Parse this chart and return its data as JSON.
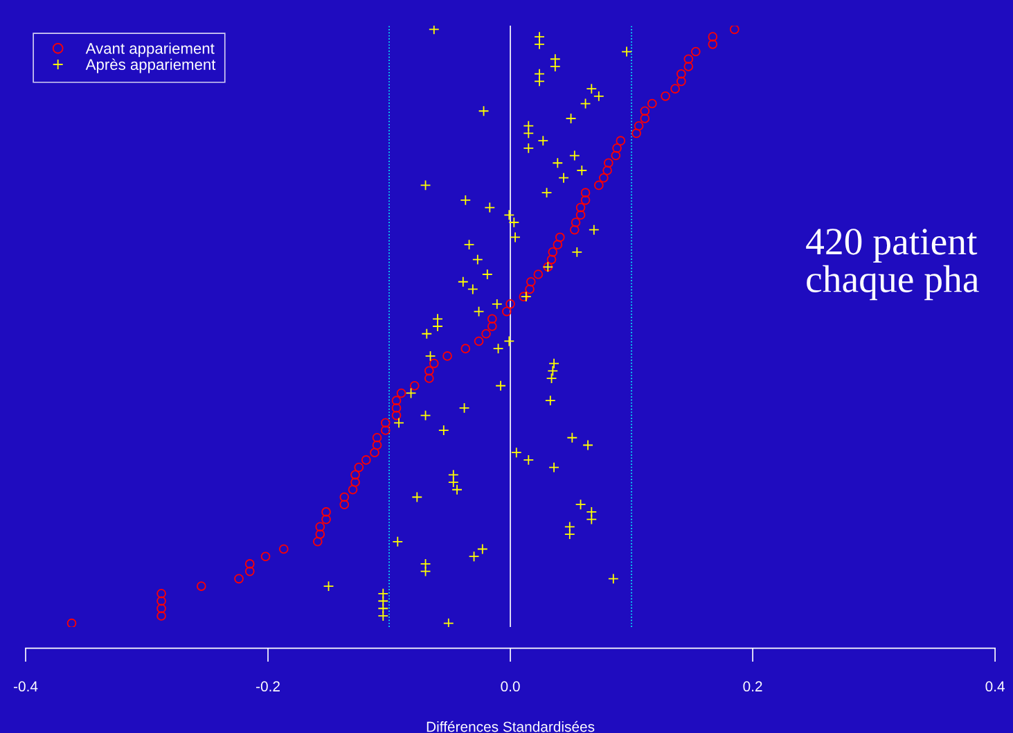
{
  "chart_data": {
    "type": "scatter",
    "orientation": "horizontal",
    "xlabel": "Différences Standardisées",
    "categories": [
      null,
      null,
      null,
      null,
      null,
      null,
      null,
      null,
      null,
      null,
      null,
      null,
      null,
      null,
      null,
      null,
      null,
      null,
      null,
      null,
      null,
      null,
      null,
      null,
      null,
      null,
      null,
      null,
      null,
      null,
      null,
      null,
      null,
      null,
      null,
      null,
      null,
      null,
      null,
      null,
      null,
      null,
      null,
      null,
      null,
      null,
      null,
      null,
      null,
      null,
      null,
      null,
      null,
      null,
      null,
      null,
      null,
      null,
      null,
      null,
      null,
      null,
      null,
      null,
      null,
      null,
      null,
      null,
      null,
      null,
      null,
      null,
      null,
      null,
      null,
      null,
      null,
      null,
      null,
      null,
      null
    ],
    "series": [
      {
        "name": "Avant appariement",
        "color": "#ff0000",
        "marker": "circle",
        "values": [
          0.185,
          0.167,
          0.167,
          0.153,
          0.147,
          0.147,
          0.141,
          0.141,
          0.136,
          0.128,
          0.117,
          0.111,
          0.111,
          0.106,
          0.104,
          0.091,
          0.088,
          0.087,
          0.081,
          0.08,
          0.077,
          0.073,
          0.062,
          0.062,
          0.058,
          0.058,
          0.054,
          0.053,
          0.041,
          0.039,
          0.035,
          0.034,
          0.031,
          0.023,
          0.017,
          0.016,
          0.011,
          0.0,
          -0.003,
          -0.015,
          -0.015,
          -0.02,
          -0.026,
          -0.037,
          -0.052,
          -0.063,
          -0.067,
          -0.067,
          -0.079,
          -0.09,
          -0.094,
          -0.094,
          -0.094,
          -0.103,
          -0.103,
          -0.11,
          -0.11,
          -0.112,
          -0.119,
          -0.125,
          -0.128,
          -0.128,
          -0.13,
          -0.137,
          -0.137,
          -0.152,
          -0.152,
          -0.157,
          -0.157,
          -0.159,
          -0.187,
          -0.202,
          -0.215,
          -0.215,
          -0.224,
          -0.255,
          -0.288,
          -0.288,
          -0.288,
          -0.288,
          -0.362
        ]
      },
      {
        "name": "Après appariement",
        "color": "#ffff00",
        "marker": "cross",
        "values": [
          -0.063,
          0.024,
          0.024,
          0.096,
          0.037,
          0.037,
          0.024,
          0.024,
          0.067,
          0.073,
          0.062,
          -0.022,
          0.05,
          0.015,
          0.015,
          0.027,
          0.015,
          0.053,
          0.039,
          0.059,
          0.044,
          -0.07,
          0.03,
          -0.037,
          -0.017,
          -0.001,
          0.003,
          0.069,
          0.004,
          -0.034,
          0.055,
          -0.027,
          0.031,
          -0.019,
          -0.039,
          -0.031,
          0.013,
          -0.011,
          -0.026,
          -0.06,
          -0.06,
          -0.069,
          -0.001,
          -0.01,
          -0.066,
          0.036,
          0.035,
          0.034,
          -0.008,
          -0.082,
          0.033,
          -0.038,
          -0.07,
          -0.092,
          -0.055,
          0.051,
          0.064,
          0.005,
          0.015,
          0.036,
          -0.047,
          -0.047,
          -0.044,
          -0.077,
          0.058,
          0.067,
          0.067,
          0.049,
          0.049,
          -0.093,
          -0.023,
          -0.03,
          -0.07,
          -0.07,
          0.085,
          -0.15,
          -0.105,
          -0.105,
          -0.105,
          -0.105,
          -0.051
        ]
      }
    ],
    "xlim": [
      -0.4,
      0.4
    ],
    "xticks": [
      {
        "value": -0.4,
        "label": "-0.4"
      },
      {
        "value": -0.2,
        "label": "-0.2"
      },
      {
        "value": 0,
        "label": "0.0"
      },
      {
        "value": 0.2,
        "label": "0.2"
      },
      {
        "value": 0.4,
        "label": "0.4"
      }
    ],
    "tick_labels": "x",
    "grid": false,
    "legend": "top left",
    "ref_lines": [
      {
        "axis": "x",
        "value": -0.1,
        "color": "#00ffff",
        "line_style": "dotted"
      },
      {
        "axis": "x",
        "value": 0,
        "color": "#ffffff",
        "line_style": "solid"
      },
      {
        "axis": "x",
        "value": 0.1,
        "color": "#00ffff",
        "line_style": "dotted"
      }
    ],
    "annotations": [
      "420 patient\nchaque pha"
    ]
  }
}
